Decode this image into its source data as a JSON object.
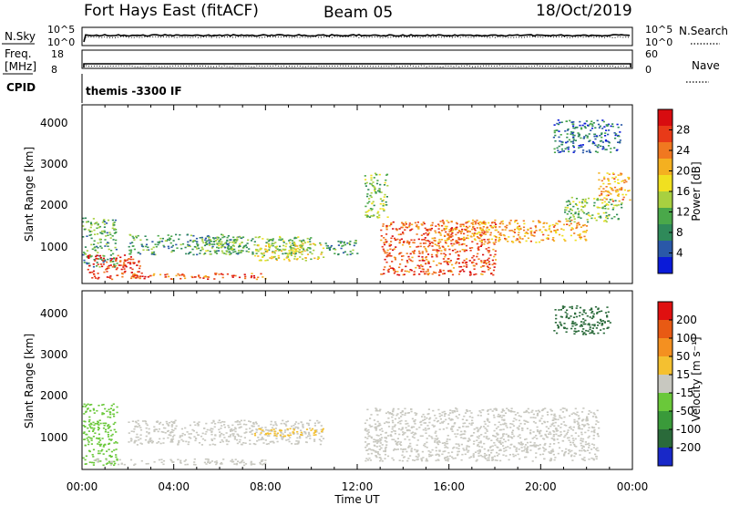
{
  "header": {
    "station": "Fort Hays East (fitACF)",
    "beam": "Beam 05",
    "date": "18/Oct/2019"
  },
  "noise_panel": {
    "left_label": "N.Sky",
    "left_ticks": [
      "10^5",
      "10^0"
    ],
    "right_ticks": [
      "10^5",
      "10^0"
    ],
    "right_label": "N.Search"
  },
  "freq_panel": {
    "left_label": "Freq.",
    "left_unit": "[MHz]",
    "left_ticks": [
      "18",
      "8"
    ],
    "right_ticks": [
      "60",
      "0"
    ],
    "right_label": "Nave",
    "freq_mhz": 10.5,
    "nave": 18
  },
  "cpid_panel": {
    "label": "CPID",
    "text": "themis -3300 IF"
  },
  "power_panel": {
    "ylabel": "Slant Range [km]",
    "yticks": [
      "1000",
      "2000",
      "3000",
      "4000"
    ],
    "colorbar_label": "Power [dB]",
    "colorbar_ticks": [
      "4",
      "8",
      "12",
      "16",
      "20",
      "24",
      "28"
    ],
    "colors": [
      "#0a1ad8",
      "#2a58a8",
      "#2f8a5a",
      "#4aa84a",
      "#a8d040",
      "#f0e020",
      "#f4b020",
      "#f07820",
      "#e83a18",
      "#d80c10"
    ]
  },
  "velocity_panel": {
    "ylabel": "Slant Range [km]",
    "yticks": [
      "1000",
      "2000",
      "3000",
      "4000"
    ],
    "colorbar_label": "Velocity [m s⁻¹]",
    "colorbar_ticks": [
      "200",
      "100",
      "50",
      "15",
      "-15",
      "-50",
      "-100",
      "-200"
    ],
    "colors": [
      "#1828c8",
      "#2a6a3a",
      "#3a9a3a",
      "#6ac83a",
      "#c8c8c0",
      "#f4c030",
      "#f49020",
      "#e85a14",
      "#e01010"
    ]
  },
  "xaxis": {
    "ticks": [
      "00:00",
      "04:00",
      "08:00",
      "12:00",
      "16:00",
      "20:00",
      "00:00"
    ],
    "label": "Time UT"
  },
  "chart_data": {
    "type": "heatmap",
    "x_range_hours": [
      0,
      24
    ],
    "y_range_km": [
      180,
      4550
    ],
    "power_regions": [
      {
        "t": [
          0.0,
          1.5
        ],
        "r": [
          600,
          1800
        ],
        "db": 10
      },
      {
        "t": [
          0.2,
          2.5
        ],
        "r": [
          300,
          900
        ],
        "db": 26
      },
      {
        "t": [
          2.0,
          7.0
        ],
        "r": [
          900,
          1400
        ],
        "db": 9
      },
      {
        "t": [
          5.0,
          10.0
        ],
        "r": [
          900,
          1350
        ],
        "db": 11
      },
      {
        "t": [
          7.5,
          10.5
        ],
        "r": [
          750,
          1200
        ],
        "db": 16
      },
      {
        "t": [
          2.0,
          8.0
        ],
        "r": [
          300,
          450
        ],
        "db": 24
      },
      {
        "t": [
          10.5,
          12.0
        ],
        "r": [
          900,
          1250
        ],
        "db": 8
      },
      {
        "t": [
          12.3,
          13.3
        ],
        "r": [
          1800,
          2900
        ],
        "db": 12
      },
      {
        "t": [
          13.0,
          18.0
        ],
        "r": [
          400,
          1700
        ],
        "db": 24
      },
      {
        "t": [
          15.5,
          22.0
        ],
        "r": [
          1200,
          1750
        ],
        "db": 20
      },
      {
        "t": [
          21.0,
          23.5
        ],
        "r": [
          1700,
          2300
        ],
        "db": 12
      },
      {
        "t": [
          22.5,
          23.9
        ],
        "r": [
          2200,
          2900
        ],
        "db": 20
      },
      {
        "t": [
          20.5,
          23.5
        ],
        "r": [
          3400,
          4200
        ],
        "db": 6
      }
    ],
    "velocity_regions": [
      {
        "t": [
          0.0,
          1.5
        ],
        "r": [
          300,
          1800
        ],
        "v": 20
      },
      {
        "t": [
          0.5,
          8.0
        ],
        "r": [
          300,
          450
        ],
        "v": 0
      },
      {
        "t": [
          2.0,
          10.5
        ],
        "r": [
          800,
          1400
        ],
        "v": -10
      },
      {
        "t": [
          7.5,
          10.5
        ],
        "r": [
          1000,
          1200
        ],
        "v": -45
      },
      {
        "t": [
          12.3,
          22.5
        ],
        "r": [
          400,
          1700
        ],
        "v": -5
      },
      {
        "t": [
          20.5,
          23.0
        ],
        "r": [
          3500,
          4200
        ],
        "v": 150
      }
    ]
  }
}
